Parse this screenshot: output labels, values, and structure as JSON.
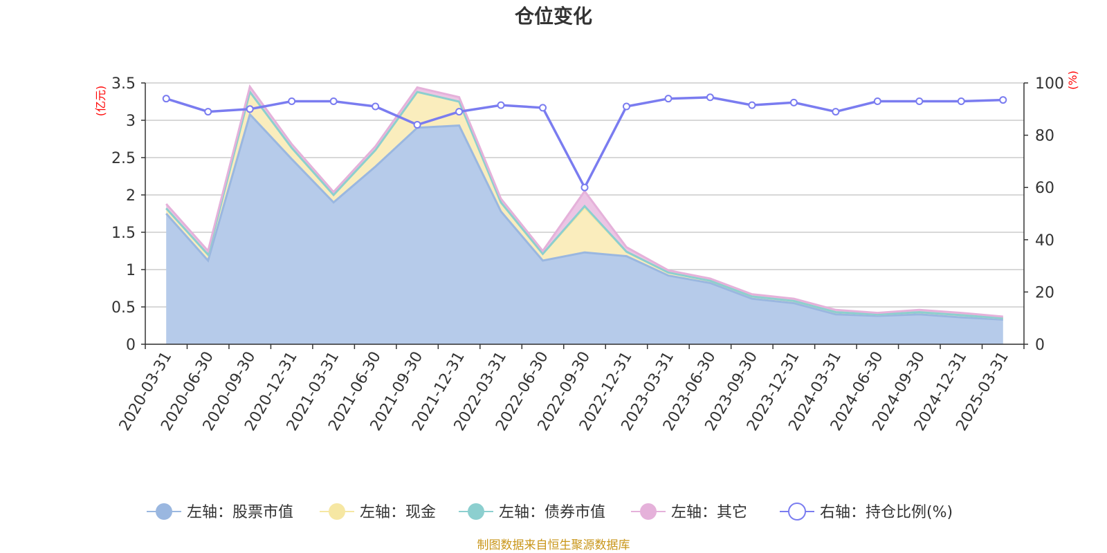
{
  "chart_data": {
    "type": "area",
    "title": "仓位变化",
    "left_unit": "(亿元)",
    "right_unit": "(%)",
    "ylim_left": [
      0,
      3.5
    ],
    "ylim_right": [
      0,
      100
    ],
    "left_ticks": [
      "0",
      "0.5",
      "1",
      "1.5",
      "2",
      "2.5",
      "3",
      "3.5"
    ],
    "right_ticks": [
      "0",
      "20",
      "40",
      "60",
      "80",
      "100"
    ],
    "grid": true,
    "legend_position": "bottom",
    "categories": [
      "2020-03-31",
      "2020-06-30",
      "2020-09-30",
      "2020-12-31",
      "2021-03-31",
      "2021-06-30",
      "2021-09-30",
      "2021-12-31",
      "2022-03-31",
      "2022-06-30",
      "2022-09-30",
      "2022-12-31",
      "2023-03-31",
      "2023-06-30",
      "2023-09-30",
      "2023-12-31",
      "2024-03-31",
      "2024-06-30",
      "2024-09-30",
      "2024-12-31",
      "2025-03-31"
    ],
    "series": [
      {
        "name": "左轴：股票市值",
        "axis": "left",
        "kind": "stacked-area",
        "color": "#9ab7e0",
        "fill": "#b6cbea",
        "values": [
          1.75,
          1.12,
          3.08,
          2.48,
          1.9,
          2.38,
          2.9,
          2.93,
          1.78,
          1.12,
          1.23,
          1.18,
          0.92,
          0.82,
          0.61,
          0.55,
          0.4,
          0.38,
          0.4,
          0.36,
          0.33
        ]
      },
      {
        "name": "左轴：现金",
        "axis": "left",
        "kind": "stacked-area",
        "color": "#f6e7a3",
        "fill": "#faedbd",
        "values": [
          0.07,
          0.08,
          0.3,
          0.15,
          0.1,
          0.22,
          0.48,
          0.32,
          0.12,
          0.09,
          0.6,
          0.06,
          0.04,
          0.03,
          0.03,
          0.03,
          0.03,
          0.02,
          0.03,
          0.03,
          0.02
        ]
      },
      {
        "name": "左轴：债券市值",
        "axis": "left",
        "kind": "stacked-area",
        "color": "#8ccfcf",
        "fill": "#a3dada",
        "values": [
          0,
          0,
          0,
          0,
          0,
          0,
          0,
          0,
          0,
          0,
          0.02,
          0,
          0,
          0,
          0,
          0,
          0,
          0,
          0,
          0,
          0
        ]
      },
      {
        "name": "左轴：其它",
        "axis": "left",
        "kind": "stacked-area",
        "color": "#e5b1da",
        "fill": "#ecc5e4",
        "values": [
          0.06,
          0.05,
          0.07,
          0.05,
          0.04,
          0.05,
          0.06,
          0.06,
          0.05,
          0.04,
          0.2,
          0.06,
          0.03,
          0.03,
          0.03,
          0.03,
          0.03,
          0.02,
          0.03,
          0.03,
          0.02
        ]
      },
      {
        "name": "右轴：持仓比例(%)",
        "axis": "right",
        "kind": "line",
        "color": "#7a7cf0",
        "values": [
          94,
          89,
          90,
          93,
          93,
          91,
          84,
          89,
          91.5,
          90.5,
          60,
          91,
          94,
          94.5,
          91.5,
          92.5,
          89,
          93,
          93,
          93,
          93.5
        ]
      }
    ]
  },
  "footer": "制图数据来自恒生聚源数据库"
}
